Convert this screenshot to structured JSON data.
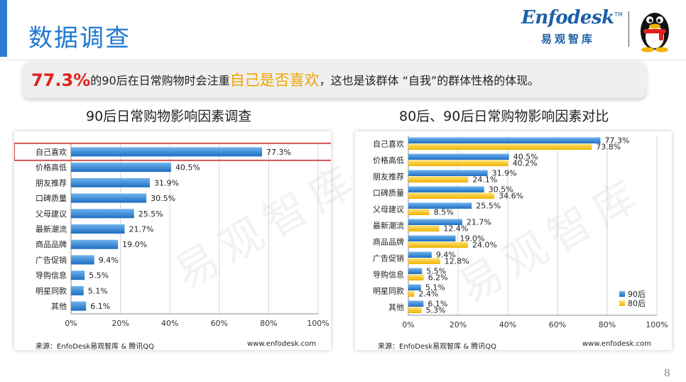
{
  "header": {
    "title": "数据调查",
    "logo_text": "Enfodesk",
    "logo_tm": "TM",
    "logo_cn": "易观智库"
  },
  "highlight": {
    "pct": "77.3%",
    "text_before": "的90后在日常购物时会注重",
    "keyword": "自己是否喜欢",
    "text_after": "，这也是该群体 “自我”的群体性格的体现。"
  },
  "watermark": "易观智库",
  "footer": {
    "source_left": "来源：EnfoDesk易观智库 & 腾讯QQ",
    "website_left": "www.enfodesk.com",
    "source_right": "来源：EnfoDesk易观智库 & 腾讯QQ",
    "website_right": "www.enfodesk.com",
    "page_number": "8"
  },
  "colors": {
    "title_blue": "#1f78d1",
    "bar_blue": "#2f86d6",
    "bar_yellow": "#f5c518",
    "highlight_red": "#e0221c",
    "highlight_orange": "#f0a400",
    "outline_red": "#d9534f"
  },
  "chart_data": [
    {
      "type": "bar",
      "orientation": "horizontal",
      "title": "90后日常购物影响因素调查",
      "categories": [
        "自己喜欢",
        "价格高低",
        "朋友推荐",
        "口碑质量",
        "父母建议",
        "最新潮流",
        "商品品牌",
        "广告促销",
        "导购信息",
        "明星同款",
        "其他"
      ],
      "values": [
        77.3,
        40.5,
        31.9,
        30.5,
        25.5,
        21.7,
        19.0,
        9.4,
        5.5,
        5.1,
        6.1
      ],
      "value_labels": [
        "77.3%",
        "40.5%",
        "31.9%",
        "30.5%",
        "25.5%",
        "21.7%",
        "19.0%",
        "9.4%",
        "5.5%",
        "5.1%",
        "6.1%"
      ],
      "xlim": [
        0,
        100
      ],
      "xticks": [
        "0%",
        "20%",
        "40%",
        "60%",
        "80%",
        "100%"
      ],
      "highlighted_category": "自己喜欢",
      "grid": true
    },
    {
      "type": "bar",
      "orientation": "horizontal",
      "title": "80后、90后日常购物影响因素对比",
      "categories": [
        "自己喜欢",
        "价格高低",
        "朋友推荐",
        "口碑质量",
        "父母建议",
        "最新潮流",
        "商品品牌",
        "广告促销",
        "导购信息",
        "明星同款",
        "其他"
      ],
      "series": [
        {
          "name": "90后",
          "values": [
            77.3,
            40.5,
            31.9,
            30.5,
            25.5,
            21.7,
            19.0,
            9.4,
            5.5,
            5.1,
            6.1
          ],
          "value_labels": [
            "77.3%",
            "40.5%",
            "31.9%",
            "30.5%",
            "25.5%",
            "21.7%",
            "19.0%",
            "9.4%",
            "5.5%",
            "5.1%",
            "6.1%"
          ]
        },
        {
          "name": "80后",
          "values": [
            73.8,
            40.2,
            24.1,
            34.6,
            8.5,
            12.4,
            24.0,
            12.8,
            6.2,
            2.4,
            5.3
          ],
          "value_labels": [
            "73.8%",
            "40.2%",
            "24.1%",
            "34.6%",
            "8.5%",
            "12.4%",
            "24.0%",
            "12.8%",
            "6.2%",
            "2.4%",
            "5.3%"
          ]
        }
      ],
      "xlim": [
        0,
        100
      ],
      "xticks": [
        "0%",
        "20%",
        "40%",
        "60%",
        "80%",
        "100%"
      ],
      "legend_position": "bottom-right",
      "grid": true
    }
  ]
}
